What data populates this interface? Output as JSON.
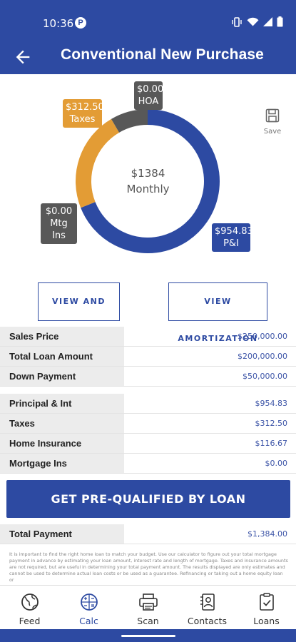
{
  "status_bar": {
    "time": "10:36",
    "badge": "P"
  },
  "app_bar": {
    "title": "Conventional New Purchase"
  },
  "chart_data": {
    "type": "pie",
    "donut": true,
    "center_value": "$1384",
    "center_label": "Monthly",
    "slices": [
      {
        "label": "P&I",
        "value": 954.83,
        "display": "$954.83",
        "color": "#2d4aa2"
      },
      {
        "label": "Taxes",
        "value": 312.5,
        "display": "$312.50",
        "color": "#e39c35"
      },
      {
        "label": "HOA",
        "value": 0.0,
        "display": "$0.00",
        "color": "#585858"
      },
      {
        "label": "Mtg Ins",
        "value": 0.0,
        "display": "$0.00",
        "color": "#585858"
      },
      {
        "label": "Home Insurance",
        "value": 116.67,
        "display": "$116.67",
        "color": "#585858"
      }
    ]
  },
  "save": {
    "label": "Save"
  },
  "buttons": {
    "view_share": "VIEW AND SHARE",
    "view_amortization": "VIEW AMORTIZATION",
    "prequalify": "GET PRE-QUALIFIED BY LOAN"
  },
  "loan_table": [
    {
      "label": "Sales Price",
      "value": "$250,000.00"
    },
    {
      "label": "Total Loan Amount",
      "value": "$200,000.00"
    },
    {
      "label": "Down Payment",
      "value": "$50,000.00"
    }
  ],
  "payment_table": [
    {
      "label": "Principal & Int",
      "value": "$954.83"
    },
    {
      "label": "Taxes",
      "value": "$312.50"
    },
    {
      "label": "Home Insurance",
      "value": "$116.67"
    },
    {
      "label": "Mortgage Ins",
      "value": "$0.00"
    }
  ],
  "total": {
    "label": "Total Payment",
    "value": "$1,384.00"
  },
  "disclaimer": "It is important to find the right home loan to match your budget. Use our calculator to figure out your total mortgage payment in advance by estimating your loan amount, interest rate and length of mortgage. Taxes and insurance amounts are not required, but are useful in determining your total payment amount. The results displayed are only estimates and cannot be used to determine actual loan costs or be used as a guarantee. Refinancing or taking out a home equity loan or",
  "bottom_nav": [
    {
      "label": "Feed",
      "icon": "globe-icon"
    },
    {
      "label": "Calc",
      "icon": "calculator-icon",
      "active": true
    },
    {
      "label": "Scan",
      "icon": "printer-icon"
    },
    {
      "label": "Contacts",
      "icon": "contacts-icon"
    },
    {
      "label": "Loans",
      "icon": "document-check-icon"
    }
  ]
}
